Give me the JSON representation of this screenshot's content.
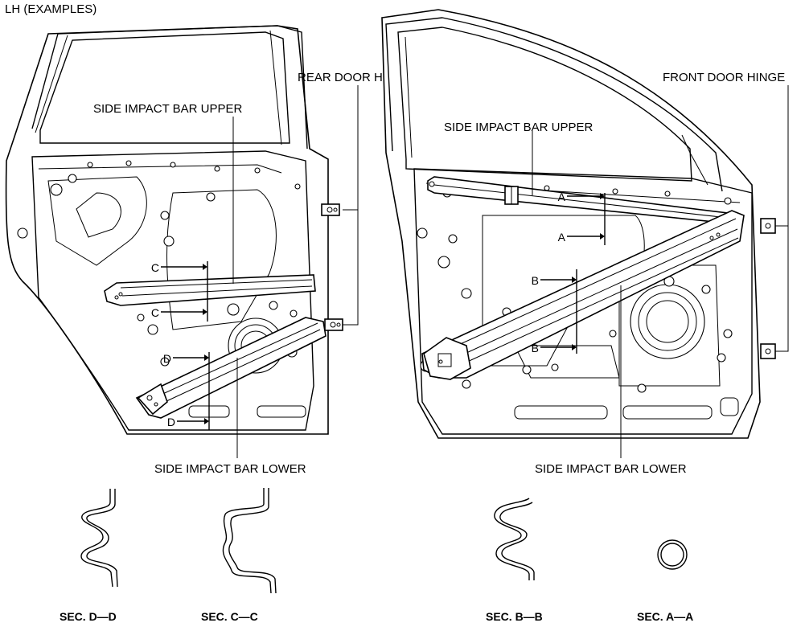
{
  "header": {
    "title": "LH (EXAMPLES)"
  },
  "rear_door": {
    "hinge_label": "REAR DOOR HINGE",
    "bar_upper_label": "SIDE IMPACT BAR UPPER",
    "bar_lower_label": "SIDE IMPACT BAR LOWER",
    "section_marks": [
      "C",
      "C",
      "D",
      "D"
    ]
  },
  "front_door": {
    "hinge_label": "FRONT DOOR HINGE",
    "bar_upper_label": "SIDE IMPACT BAR UPPER",
    "bar_lower_label": "SIDE IMPACT BAR LOWER",
    "section_marks": [
      "A",
      "A",
      "B",
      "B"
    ]
  },
  "sections": [
    {
      "id": "dd",
      "label": "SEC. D—D"
    },
    {
      "id": "cc",
      "label": "SEC. C—C"
    },
    {
      "id": "bb",
      "label": "SEC. B—B"
    },
    {
      "id": "aa",
      "label": "SEC. A—A"
    }
  ]
}
